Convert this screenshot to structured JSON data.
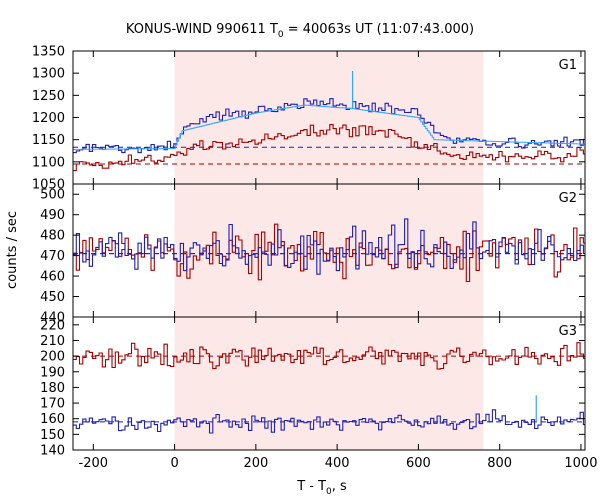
{
  "chart_data": {
    "type": "line",
    "title": "KONUS-WIND 990611 T",
    "title_sub": "0",
    "title_rest": " = 40063s UT (11:07:43.000)",
    "xlabel": "T - T",
    "xlabel_sub": "0",
    "xlabel_rest": ", s",
    "ylabel": "counts / sec",
    "xlim": [
      -250,
      1010
    ],
    "xticks": [
      -200,
      0,
      200,
      400,
      600,
      800,
      1000
    ],
    "shaded_interval": [
      0,
      760
    ],
    "shade_color": "#fde8e8",
    "colors": {
      "red": "#a50000",
      "blue": "#1f1fb4",
      "cyan": "#2ea8ff"
    },
    "panels": [
      {
        "label": "G1",
        "ylim": [
          1050,
          1350
        ],
        "yticks": [
          1050,
          1100,
          1150,
          1200,
          1250,
          1300,
          1350
        ],
        "background_levels": {
          "red": 1095,
          "blue": 1133
        },
        "series": [
          {
            "color": "red",
            "nodes": [
              [
                -250,
                1100
              ],
              [
                -180,
                1095
              ],
              [
                -100,
                1100
              ],
              [
                -20,
                1108
              ],
              [
                0,
                1115
              ],
              [
                40,
                1130
              ],
              [
                120,
                1140
              ],
              [
                200,
                1145
              ],
              [
                260,
                1155
              ],
              [
                320,
                1168
              ],
              [
                400,
                1170
              ],
              [
                440,
                1175
              ],
              [
                500,
                1170
              ],
              [
                560,
                1160
              ],
              [
                600,
                1145
              ],
              [
                650,
                1125
              ],
              [
                700,
                1115
              ],
              [
                760,
                1112
              ],
              [
                850,
                1110
              ],
              [
                930,
                1115
              ],
              [
                1010,
                1120
              ]
            ],
            "noise": 10,
            "seed": 11
          },
          {
            "color": "blue",
            "nodes": [
              [
                -250,
                1130
              ],
              [
                -100,
                1130
              ],
              [
                -20,
                1132
              ],
              [
                0,
                1135
              ],
              [
                20,
                1175
              ],
              [
                100,
                1205
              ],
              [
                200,
                1215
              ],
              [
                260,
                1222
              ],
              [
                320,
                1235
              ],
              [
                400,
                1232
              ],
              [
                440,
                1225
              ],
              [
                500,
                1222
              ],
              [
                560,
                1218
              ],
              [
                610,
                1205
              ],
              [
                640,
                1160
              ],
              [
                700,
                1148
              ],
              [
                760,
                1145
              ],
              [
                850,
                1140
              ],
              [
                930,
                1142
              ],
              [
                1010,
                1145
              ]
            ],
            "noise": 9,
            "seed": 23
          },
          {
            "color": "cyan",
            "nodes": [
              [
                -250,
                1128
              ],
              [
                0,
                1130
              ],
              [
                20,
                1170
              ],
              [
                200,
                1210
              ],
              [
                320,
                1228
              ],
              [
                440,
                1220
              ],
              [
                600,
                1200
              ],
              [
                640,
                1150
              ],
              [
                1010,
                1140
              ]
            ],
            "noise": 0,
            "seed": 1
          }
        ],
        "spike": {
          "x": 438,
          "y": 1305
        }
      },
      {
        "label": "G2",
        "ylim": [
          440,
          505
        ],
        "yticks": [
          440,
          450,
          460,
          470,
          480,
          490,
          500
        ],
        "background_levels": {
          "red": 471,
          "blue": 471
        },
        "series": [
          {
            "color": "red",
            "nodes": [
              [
                -250,
                471
              ],
              [
                1010,
                471
              ]
            ],
            "noise": 8,
            "seed": 37
          },
          {
            "color": "blue",
            "nodes": [
              [
                -250,
                472
              ],
              [
                1010,
                472
              ]
            ],
            "noise": 8,
            "seed": 53
          }
        ]
      },
      {
        "label": "G3",
        "ylim": [
          140,
          225
        ],
        "yticks": [
          140,
          150,
          160,
          170,
          180,
          190,
          200,
          210,
          220
        ],
        "background_levels": {
          "red": 200,
          "blue": 158
        },
        "series": [
          {
            "color": "red",
            "nodes": [
              [
                -250,
                199
              ],
              [
                1010,
                200
              ]
            ],
            "noise": 5,
            "seed": 71
          },
          {
            "color": "blue",
            "nodes": [
              [
                -250,
                157
              ],
              [
                1010,
                158
              ]
            ],
            "noise": 4,
            "seed": 89
          }
        ],
        "spike": {
          "x": 890,
          "y": 175
        }
      }
    ]
  }
}
